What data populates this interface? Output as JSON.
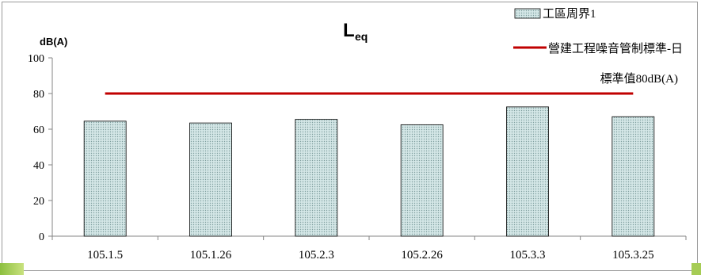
{
  "chart_data": {
    "type": "bar",
    "title_main": "L",
    "title_sub": "eq",
    "ylabel": "dB(A)",
    "xlabel": "",
    "categories": [
      "105.1.5",
      "105.1.26",
      "105.2.3",
      "105.2.26",
      "105.3.3",
      "105.3.25"
    ],
    "series": [
      {
        "name": "工區周界1",
        "values": [
          64.5,
          63.5,
          65.5,
          62.5,
          72.5,
          67.0
        ]
      }
    ],
    "reference_line": {
      "name": "營建工程噪音管制標準-日",
      "value": 80,
      "label": "標準值80dB(A)"
    },
    "ylim": [
      0,
      100
    ],
    "yticks": [
      0,
      20,
      40,
      60,
      80,
      100
    ],
    "grid": false,
    "legend_position": "top-right",
    "colors": {
      "bar_fill": "#d4e7e7",
      "bar_dot": "#7f9e9e",
      "bar_edge": "#000000",
      "line": "#c00000",
      "axis": "#868686"
    }
  }
}
